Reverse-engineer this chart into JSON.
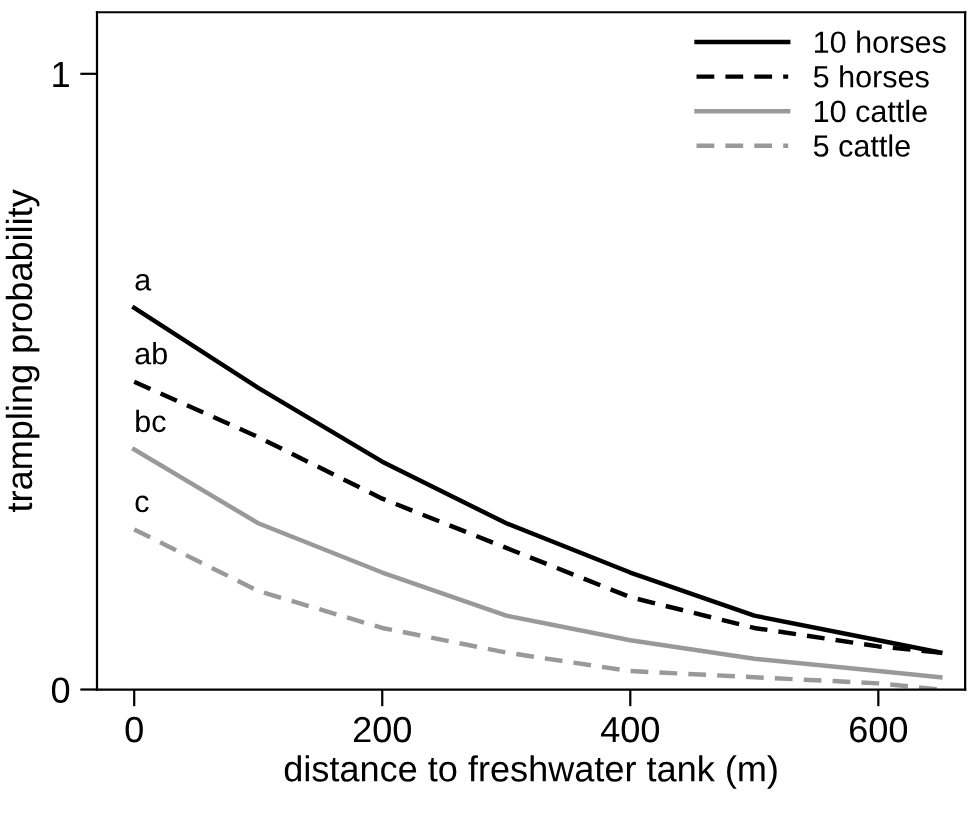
{
  "chart_data": {
    "type": "line",
    "xlabel": "distance to freshwater tank (m)",
    "ylabel": "trampling probability",
    "x": [
      0,
      100,
      200,
      300,
      400,
      500,
      600,
      650
    ],
    "series": [
      {
        "name": "10 horses",
        "color": "#000000",
        "line_style": "solid",
        "values": [
          0.62,
          0.49,
          0.37,
          0.27,
          0.19,
          0.12,
          0.08,
          0.06
        ]
      },
      {
        "name": "5 horses",
        "color": "#000000",
        "line_style": "dashed",
        "values": [
          0.5,
          0.41,
          0.31,
          0.23,
          0.15,
          0.1,
          0.07,
          0.06
        ]
      },
      {
        "name": "10 cattle",
        "color": "#999999",
        "line_style": "solid",
        "values": [
          0.39,
          0.27,
          0.19,
          0.12,
          0.08,
          0.05,
          0.03,
          0.02
        ]
      },
      {
        "name": "5 cattle",
        "color": "#999999",
        "line_style": "dashed",
        "values": [
          0.26,
          0.16,
          0.1,
          0.06,
          0.03,
          0.02,
          0.01,
          0.0
        ]
      }
    ],
    "annotations": [
      {
        "text": "a",
        "y": 0.62
      },
      {
        "text": "ab",
        "y": 0.5
      },
      {
        "text": "bc",
        "y": 0.39
      },
      {
        "text": "c",
        "y": 0.26
      }
    ],
    "xlim": [
      -30,
      670
    ],
    "ylim": [
      0,
      1.1
    ],
    "xticks": [
      0,
      200,
      400,
      600
    ],
    "yticks": [
      0,
      1
    ],
    "grid": false,
    "legend": "top right",
    "marker": "none"
  }
}
